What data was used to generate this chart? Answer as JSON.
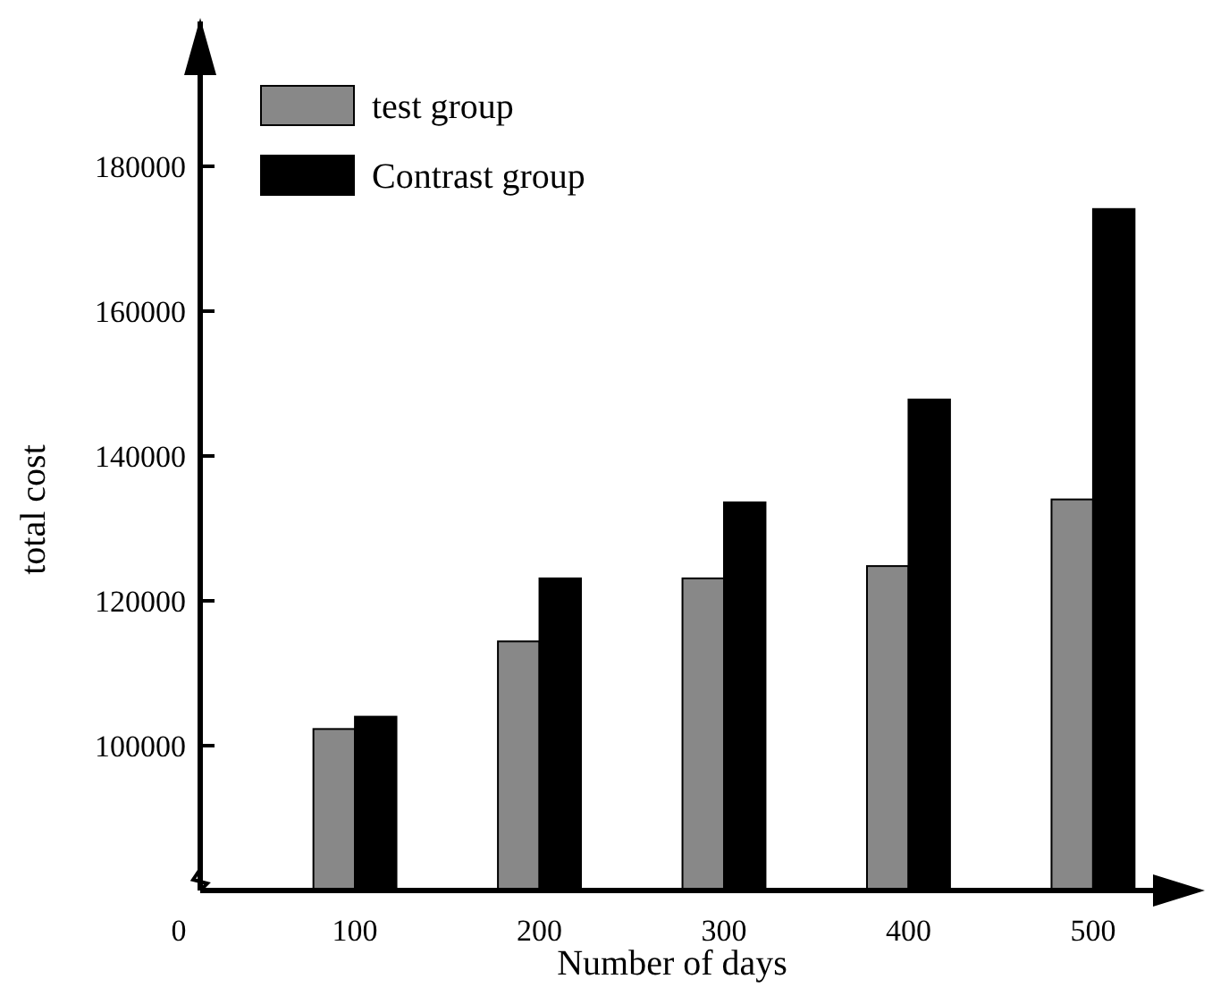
{
  "chart_data": {
    "type": "bar",
    "xlabel": "Number of days",
    "ylabel": "total cost",
    "categories": [
      "100",
      "200",
      "300",
      "400",
      "500"
    ],
    "series": [
      {
        "name": "test group",
        "color": "#888888",
        "values": [
          102300,
          114400,
          123100,
          124800,
          134000
        ]
      },
      {
        "name": "Contrast group",
        "color": "#000000",
        "values": [
          104000,
          123100,
          133600,
          147800,
          174100
        ]
      }
    ],
    "ylim": [
      80000,
      200000
    ],
    "yticks": [
      100000,
      120000,
      140000,
      160000,
      180000
    ],
    "annotations": [
      "0"
    ],
    "grid": false,
    "legend": "top left"
  }
}
